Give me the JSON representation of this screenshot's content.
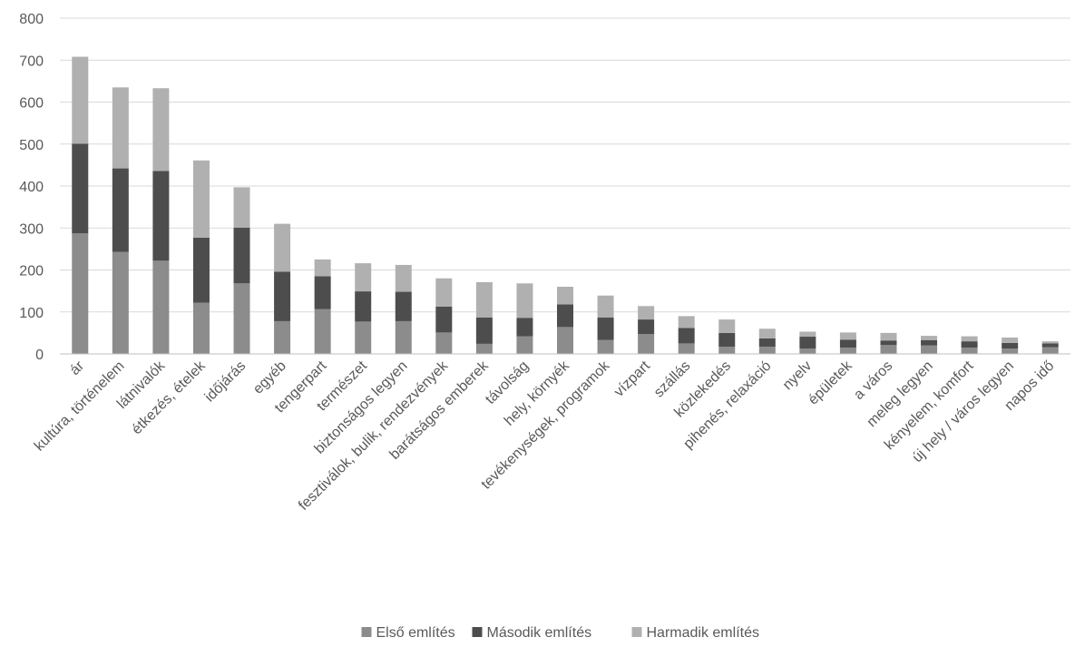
{
  "chart_data": {
    "type": "bar",
    "stacked": true,
    "title": "",
    "xlabel": "",
    "ylabel": "",
    "ylim": [
      0,
      800
    ],
    "yticks": [
      0,
      100,
      200,
      300,
      400,
      500,
      600,
      700,
      800
    ],
    "grid": true,
    "legend_position": "bottom",
    "categories": [
      "ár",
      "kultúra, történelem",
      "látnivalók",
      "étkezés, ételek",
      "időjárás",
      "egyéb",
      "tengerpart",
      "természet",
      "biztonságos legyen",
      "fesztiválok, bulik, rendezvények",
      "barátságos emberek",
      "távolság",
      "hely, környék",
      "tevékenységek, programok",
      "vízpart",
      "szállás",
      "közlekedés",
      "pihenés, relaxáció",
      "nyelv",
      "épületek",
      "a város",
      "meleg legyen",
      "kényelem, komfort",
      "új hely / város legyen",
      "napos idő"
    ],
    "series": [
      {
        "name": "Első említés",
        "color": "#8c8c8c",
        "values": [
          287,
          243,
          222,
          122,
          168,
          78,
          107,
          77,
          78,
          51,
          24,
          42,
          64,
          33,
          47,
          25,
          17,
          17,
          13,
          15,
          21,
          20,
          15,
          13,
          16
        ]
      },
      {
        "name": "Második említés",
        "color": "#4d4d4d",
        "values": [
          214,
          199,
          214,
          155,
          133,
          118,
          78,
          72,
          70,
          62,
          63,
          44,
          54,
          54,
          35,
          37,
          33,
          20,
          28,
          19,
          11,
          13,
          15,
          13,
          9
        ]
      },
      {
        "name": "Harmadik említés",
        "color": "#b0b0b0",
        "values": [
          207,
          193,
          197,
          184,
          96,
          114,
          40,
          67,
          64,
          67,
          84,
          82,
          42,
          52,
          32,
          28,
          32,
          23,
          12,
          17,
          18,
          10,
          12,
          13,
          5
        ]
      }
    ]
  }
}
